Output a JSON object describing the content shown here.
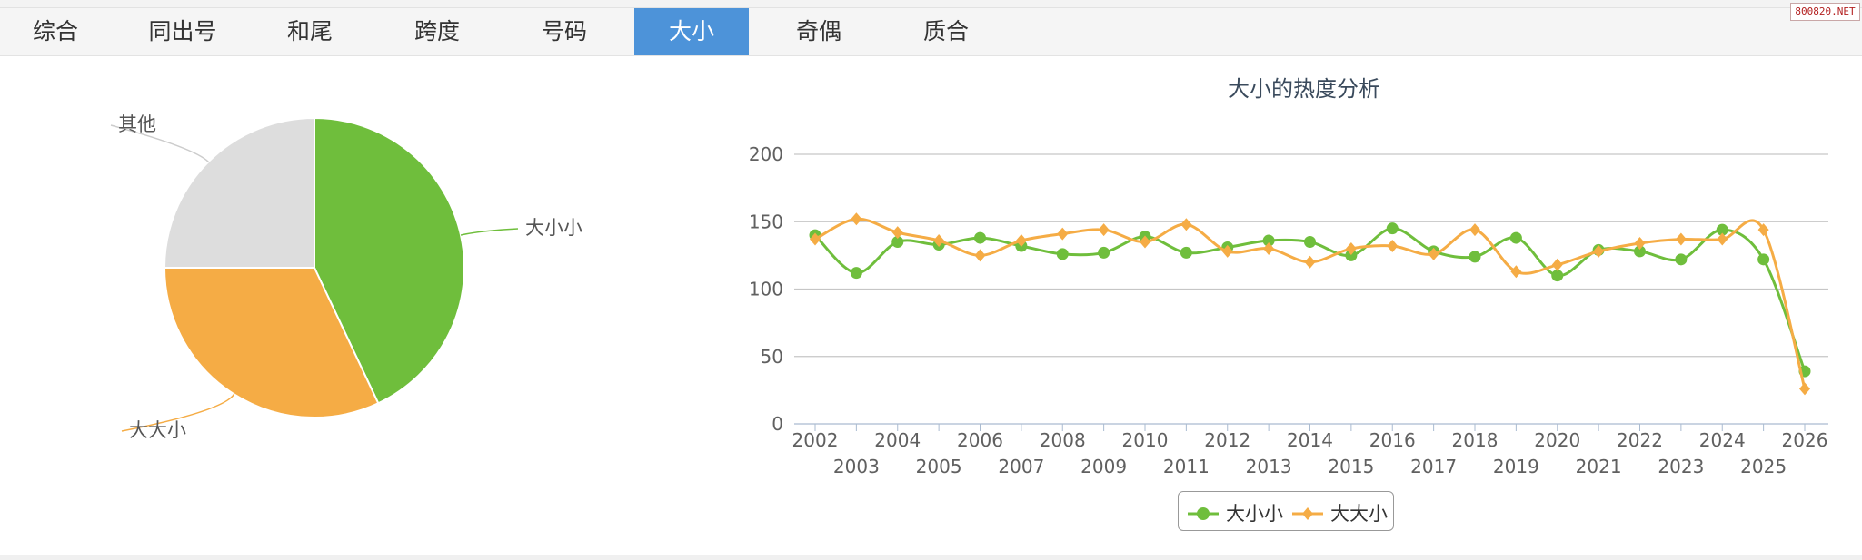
{
  "tabs": [
    {
      "label": "综合",
      "active": false
    },
    {
      "label": "同出号",
      "active": false
    },
    {
      "label": "和尾",
      "active": false
    },
    {
      "label": "跨度",
      "active": false
    },
    {
      "label": "号码",
      "active": false
    },
    {
      "label": "大小",
      "active": true
    },
    {
      "label": "奇偶",
      "active": false
    },
    {
      "label": "质合",
      "active": false
    }
  ],
  "watermark": "800820.NET",
  "colors": {
    "green": "#6fbe3c",
    "orange": "#f5ac45",
    "gray": "#dddddd",
    "tab_active": "#4d93d9"
  },
  "chart_data": [
    {
      "type": "pie",
      "slices": [
        {
          "label": "大小小",
          "value": 43,
          "color": "#6fbe3c"
        },
        {
          "label": "大大小",
          "value": 32,
          "color": "#f5ac45"
        },
        {
          "label": "其他",
          "value": 25,
          "color": "#dddddd"
        }
      ]
    },
    {
      "type": "line",
      "title": "大小的热度分析",
      "x": [
        "2002",
        "2003",
        "2004",
        "2005",
        "2006",
        "2007",
        "2008",
        "2009",
        "2010",
        "2011",
        "2012",
        "2013",
        "2014",
        "2015",
        "2016",
        "2017",
        "2018",
        "2019",
        "2020",
        "2021",
        "2022",
        "2023",
        "2024",
        "2025",
        "2026"
      ],
      "ylim": [
        0,
        200
      ],
      "yticks": [
        0,
        50,
        100,
        150,
        200
      ],
      "grid": true,
      "legend_position": "bottom",
      "series": [
        {
          "name": "大小小",
          "color": "#6fbe3c",
          "marker": "circle",
          "values": [
            140,
            112,
            135,
            133,
            138,
            132,
            126,
            127,
            139,
            127,
            131,
            136,
            135,
            125,
            145,
            128,
            124,
            138,
            110,
            129,
            128,
            122,
            144,
            122,
            39
          ]
        },
        {
          "name": "大大小",
          "color": "#f5ac45",
          "marker": "diamond",
          "values": [
            137,
            152,
            142,
            136,
            125,
            136,
            141,
            144,
            135,
            148,
            128,
            130,
            120,
            130,
            132,
            126,
            144,
            113,
            118,
            128,
            134,
            137,
            137,
            144,
            26
          ]
        }
      ]
    }
  ]
}
